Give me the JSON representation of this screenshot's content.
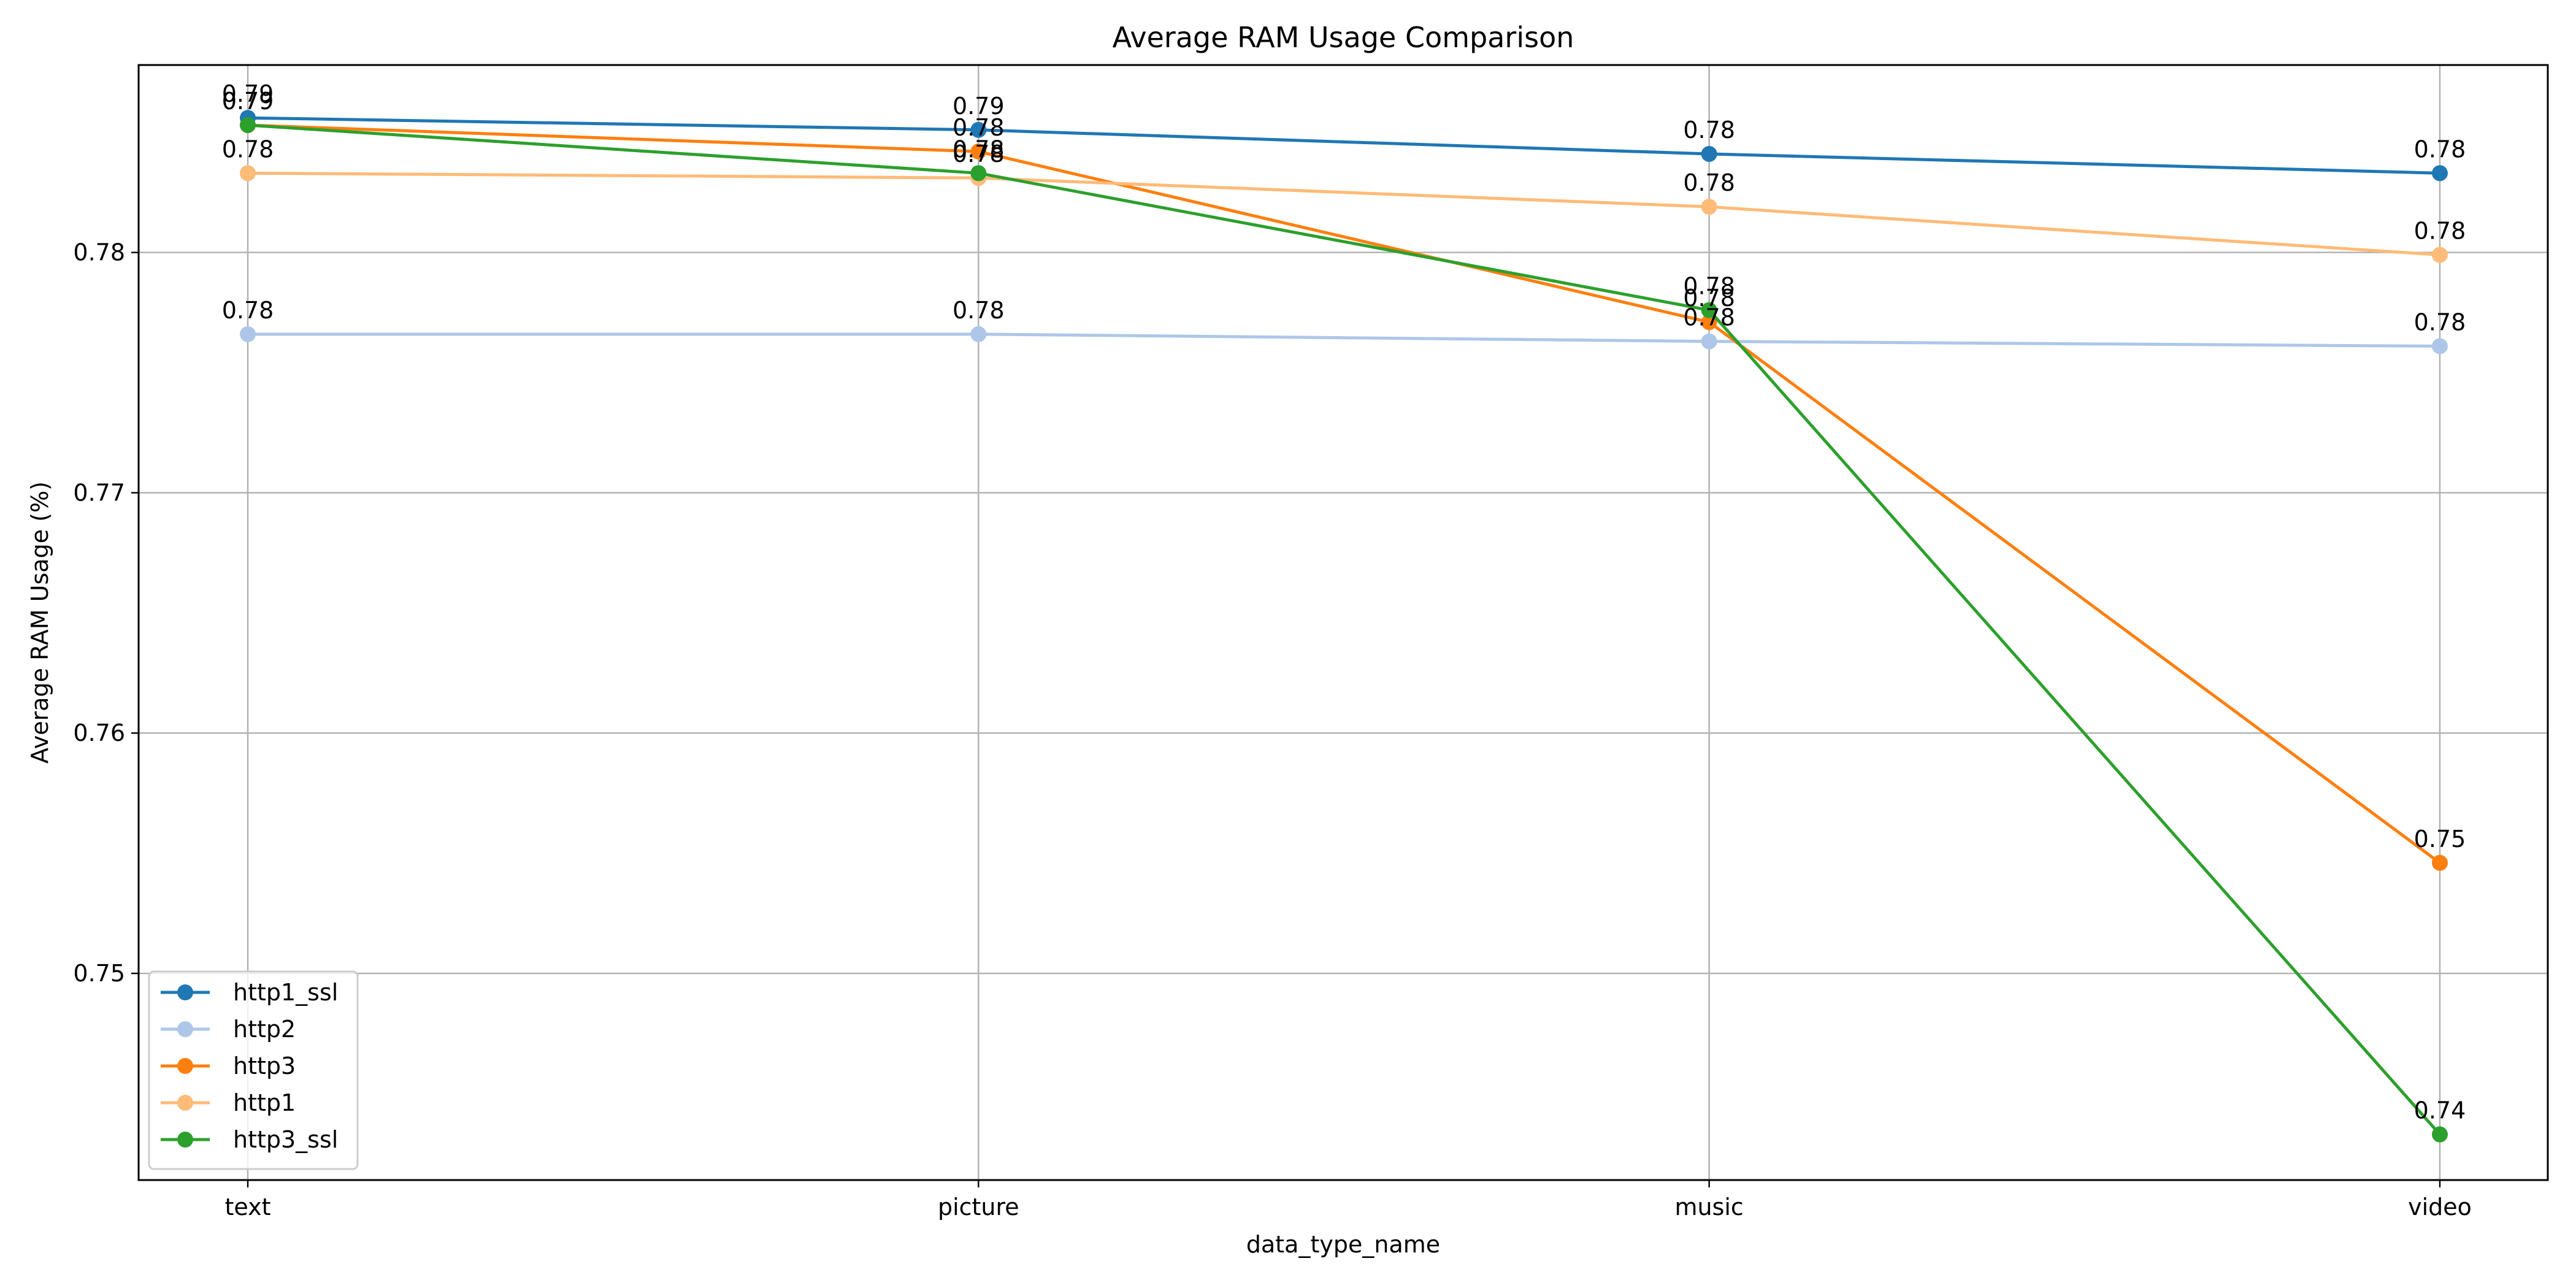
{
  "chart_data": {
    "type": "line",
    "title": "Average RAM Usage Comparison",
    "xlabel": "data_type_name",
    "ylabel": "Average RAM Usage (%)",
    "categories": [
      "text",
      "picture",
      "music",
      "video"
    ],
    "ylim": [
      0.7414,
      0.7878
    ],
    "yticks": [
      0.75,
      0.76,
      0.77,
      0.78
    ],
    "ytick_labels": [
      "0.75",
      "0.76",
      "0.77",
      "0.78"
    ],
    "grid": true,
    "legend_position": "lower-left",
    "series": [
      {
        "name": "http1_ssl",
        "color": "#1f77b4",
        "values": [
          0.7856,
          0.7851,
          0.7841,
          0.7833
        ],
        "labels": [
          "0.79",
          "0.79",
          "0.78",
          "0.78"
        ]
      },
      {
        "name": "http2",
        "color": "#aec7e8",
        "values": [
          0.7766,
          0.7766,
          0.7763,
          0.7761
        ],
        "labels": [
          "0.78",
          "0.78",
          "0.78",
          "0.78"
        ]
      },
      {
        "name": "http3",
        "color": "#ff7f0e",
        "values": [
          0.7853,
          0.7842,
          0.7771,
          0.7546
        ],
        "labels": [
          "0.79",
          "0.78",
          "0.78",
          "0.75"
        ]
      },
      {
        "name": "http1",
        "color": "#ffbb78",
        "values": [
          0.7833,
          0.7831,
          0.7819,
          0.7799
        ],
        "labels": [
          "0.78",
          "0.78",
          "0.78",
          "0.78"
        ]
      },
      {
        "name": "http3_ssl",
        "color": "#2ca02c",
        "values": [
          0.7853,
          0.7833,
          0.7776,
          0.7433
        ],
        "labels": [
          "0.79",
          "0.78",
          "0.78",
          "0.74"
        ]
      }
    ]
  }
}
